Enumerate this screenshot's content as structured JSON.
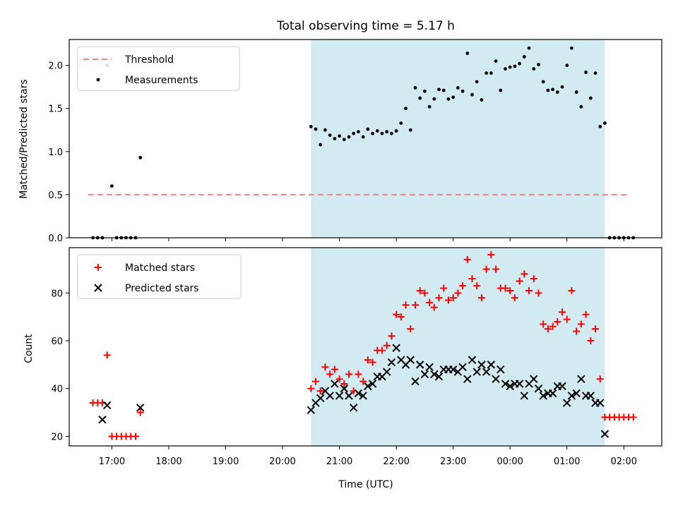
{
  "chart_data": {
    "title": "Total observing time = 5.17 h",
    "shaded_interval": {
      "start": "20:30",
      "end": "01:40",
      "color": "#add8e6"
    },
    "x_axis": {
      "label": "Time (UTC)",
      "range": [
        "16:15",
        "02:40"
      ],
      "ticks": [
        "17:00",
        "18:00",
        "19:00",
        "20:00",
        "21:00",
        "22:00",
        "23:00",
        "00:00",
        "01:00",
        "02:00"
      ]
    },
    "panels": [
      {
        "name": "ratio",
        "type": "scatter",
        "ylabel": "Matched/Predicted stars",
        "ylim": [
          0,
          2.3
        ],
        "yticks": [
          0.0,
          0.5,
          1.0,
          1.5,
          2.0
        ],
        "yticklabels": [
          "0.0",
          "0.5",
          "1.0",
          "1.5",
          "2.0"
        ],
        "legend": {
          "position": "upper-left",
          "entries": [
            "Threshold",
            "Measurements"
          ]
        },
        "threshold": {
          "name": "Threshold",
          "value": 0.5,
          "x_start": "16:35",
          "x_end": "02:05",
          "color": "#ff7f7f",
          "style": "dashed"
        },
        "series": [
          {
            "name": "Measurements",
            "marker": "dot",
            "color": "#000000",
            "points": [
              [
                "16:40",
                0.0
              ],
              [
                "16:45",
                0.0
              ],
              [
                "16:50",
                0.0
              ],
              [
                "16:55",
                2.0
              ],
              [
                "17:00",
                0.6
              ],
              [
                "17:05",
                0.0
              ],
              [
                "17:10",
                0.0
              ],
              [
                "17:15",
                0.0
              ],
              [
                "17:20",
                0.0
              ],
              [
                "17:25",
                0.0
              ],
              [
                "17:30",
                0.93
              ],
              [
                "20:30",
                1.29
              ],
              [
                "20:35",
                1.26
              ],
              [
                "20:40",
                1.08
              ],
              [
                "20:45",
                1.25
              ],
              [
                "20:50",
                1.19
              ],
              [
                "20:55",
                1.15
              ],
              [
                "21:00",
                1.18
              ],
              [
                "21:05",
                1.14
              ],
              [
                "21:10",
                1.17
              ],
              [
                "21:15",
                1.21
              ],
              [
                "21:20",
                1.23
              ],
              [
                "21:25",
                1.17
              ],
              [
                "21:30",
                1.26
              ],
              [
                "21:35",
                1.21
              ],
              [
                "21:40",
                1.24
              ],
              [
                "21:45",
                1.21
              ],
              [
                "21:50",
                1.23
              ],
              [
                "21:55",
                1.21
              ],
              [
                "22:00",
                1.24
              ],
              [
                "22:05",
                1.33
              ],
              [
                "22:10",
                1.5
              ],
              [
                "22:15",
                1.25
              ],
              [
                "22:20",
                1.74
              ],
              [
                "22:25",
                1.62
              ],
              [
                "22:30",
                1.7
              ],
              [
                "22:35",
                1.52
              ],
              [
                "22:40",
                1.61
              ],
              [
                "22:45",
                1.72
              ],
              [
                "22:50",
                1.71
              ],
              [
                "22:55",
                1.61
              ],
              [
                "23:00",
                1.63
              ],
              [
                "23:05",
                1.74
              ],
              [
                "23:10",
                1.7
              ],
              [
                "23:15",
                2.14
              ],
              [
                "23:20",
                1.66
              ],
              [
                "23:25",
                1.81
              ],
              [
                "23:30",
                1.6
              ],
              [
                "23:35",
                1.91
              ],
              [
                "23:40",
                1.91
              ],
              [
                "23:45",
                2.05
              ],
              [
                "23:50",
                1.71
              ],
              [
                "23:55",
                1.96
              ],
              [
                "00:00",
                1.98
              ],
              [
                "00:05",
                1.99
              ],
              [
                "00:10",
                2.02
              ],
              [
                "00:15",
                2.1
              ],
              [
                "00:20",
                2.2
              ],
              [
                "00:25",
                1.96
              ],
              [
                "00:30",
                2.01
              ],
              [
                "00:35",
                1.81
              ],
              [
                "00:40",
                1.71
              ],
              [
                "00:45",
                1.72
              ],
              [
                "00:50",
                1.69
              ],
              [
                "00:55",
                1.75
              ],
              [
                "01:00",
                2.0
              ],
              [
                "01:05",
                2.2
              ],
              [
                "01:10",
                1.69
              ],
              [
                "01:15",
                1.52
              ],
              [
                "01:20",
                1.92
              ],
              [
                "01:25",
                1.62
              ],
              [
                "01:30",
                1.91
              ],
              [
                "01:35",
                1.29
              ],
              [
                "01:40",
                1.33
              ],
              [
                "01:45",
                0.0
              ],
              [
                "01:50",
                0.0
              ],
              [
                "01:55",
                0.0
              ],
              [
                "02:00",
                0.0
              ],
              [
                "02:05",
                0.0
              ],
              [
                "02:10",
                0.0
              ]
            ]
          }
        ]
      },
      {
        "name": "counts",
        "type": "scatter",
        "ylabel": "Count",
        "ylim": [
          16,
          99
        ],
        "yticks": [
          20,
          40,
          60,
          80
        ],
        "yticklabels": [
          "20",
          "40",
          "60",
          "80"
        ],
        "legend": {
          "position": "upper-left",
          "entries": [
            "Matched stars",
            "Predicted stars"
          ]
        },
        "series": [
          {
            "name": "Matched stars",
            "marker": "plus",
            "color": "#ff0000",
            "points": [
              [
                "16:40",
                34
              ],
              [
                "16:45",
                34
              ],
              [
                "16:50",
                34
              ],
              [
                "16:55",
                54
              ],
              [
                "17:00",
                20
              ],
              [
                "17:05",
                20
              ],
              [
                "17:10",
                20
              ],
              [
                "17:15",
                20
              ],
              [
                "17:20",
                20
              ],
              [
                "17:25",
                20
              ],
              [
                "17:30",
                30
              ],
              [
                "20:30",
                40
              ],
              [
                "20:35",
                43
              ],
              [
                "20:40",
                39
              ],
              [
                "20:45",
                49
              ],
              [
                "20:50",
                46
              ],
              [
                "20:55",
                48
              ],
              [
                "21:00",
                44
              ],
              [
                "21:05",
                42
              ],
              [
                "21:10",
                46
              ],
              [
                "21:15",
                39
              ],
              [
                "21:20",
                46
              ],
              [
                "21:25",
                43
              ],
              [
                "21:30",
                52
              ],
              [
                "21:35",
                51
              ],
              [
                "21:40",
                56
              ],
              [
                "21:45",
                56
              ],
              [
                "21:50",
                58
              ],
              [
                "21:55",
                62
              ],
              [
                "22:00",
                71
              ],
              [
                "22:05",
                70
              ],
              [
                "22:10",
                75
              ],
              [
                "22:15",
                65
              ],
              [
                "22:20",
                75
              ],
              [
                "22:25",
                81
              ],
              [
                "22:30",
                80
              ],
              [
                "22:35",
                76
              ],
              [
                "22:40",
                74
              ],
              [
                "22:45",
                78
              ],
              [
                "22:50",
                82
              ],
              [
                "22:55",
                77
              ],
              [
                "23:00",
                78
              ],
              [
                "23:05",
                80
              ],
              [
                "23:10",
                83
              ],
              [
                "23:15",
                94
              ],
              [
                "23:20",
                86
              ],
              [
                "23:25",
                83
              ],
              [
                "23:30",
                78
              ],
              [
                "23:35",
                90
              ],
              [
                "23:40",
                96
              ],
              [
                "23:45",
                90
              ],
              [
                "23:50",
                82
              ],
              [
                "23:55",
                82
              ],
              [
                "00:00",
                81
              ],
              [
                "00:05",
                78
              ],
              [
                "00:10",
                85
              ],
              [
                "00:15",
                88
              ],
              [
                "00:20",
                81
              ],
              [
                "00:25",
                86
              ],
              [
                "00:30",
                80
              ],
              [
                "00:35",
                67
              ],
              [
                "00:40",
                65
              ],
              [
                "00:45",
                66
              ],
              [
                "00:50",
                68
              ],
              [
                "00:55",
                72
              ],
              [
                "01:00",
                69
              ],
              [
                "01:05",
                81
              ],
              [
                "01:10",
                64
              ],
              [
                "01:15",
                67
              ],
              [
                "01:20",
                71
              ],
              [
                "01:25",
                60
              ],
              [
                "01:30",
                65
              ],
              [
                "01:35",
                44
              ],
              [
                "01:40",
                28
              ],
              [
                "01:45",
                28
              ],
              [
                "01:50",
                28
              ],
              [
                "01:55",
                28
              ],
              [
                "02:00",
                28
              ],
              [
                "02:05",
                28
              ],
              [
                "02:10",
                28
              ]
            ]
          },
          {
            "name": "Predicted stars",
            "marker": "x",
            "color": "#000000",
            "points": [
              [
                "16:50",
                27
              ],
              [
                "16:55",
                33
              ],
              [
                "17:30",
                32
              ],
              [
                "20:30",
                31
              ],
              [
                "20:35",
                34
              ],
              [
                "20:40",
                36
              ],
              [
                "20:45",
                39
              ],
              [
                "20:50",
                37
              ],
              [
                "20:55",
                42
              ],
              [
                "21:00",
                37
              ],
              [
                "21:05",
                40
              ],
              [
                "21:10",
                37
              ],
              [
                "21:15",
                32
              ],
              [
                "21:20",
                38
              ],
              [
                "21:25",
                37
              ],
              [
                "21:30",
                41
              ],
              [
                "21:35",
                42
              ],
              [
                "21:40",
                45
              ],
              [
                "21:45",
                45
              ],
              [
                "21:50",
                47
              ],
              [
                "21:55",
                51
              ],
              [
                "22:00",
                57
              ],
              [
                "22:05",
                52
              ],
              [
                "22:10",
                50
              ],
              [
                "22:15",
                52
              ],
              [
                "22:20",
                43
              ],
              [
                "22:25",
                50
              ],
              [
                "22:30",
                46
              ],
              [
                "22:35",
                49
              ],
              [
                "22:40",
                46
              ],
              [
                "22:45",
                45
              ],
              [
                "22:50",
                48
              ],
              [
                "22:55",
                48
              ],
              [
                "23:00",
                48
              ],
              [
                "23:05",
                47
              ],
              [
                "23:10",
                49
              ],
              [
                "23:15",
                44
              ],
              [
                "23:20",
                52
              ],
              [
                "23:25",
                47
              ],
              [
                "23:30",
                50
              ],
              [
                "23:35",
                47
              ],
              [
                "23:40",
                50
              ],
              [
                "23:45",
                44
              ],
              [
                "23:50",
                48
              ],
              [
                "23:55",
                42
              ],
              [
                "00:00",
                41
              ],
              [
                "00:05",
                42
              ],
              [
                "00:10",
                42
              ],
              [
                "00:15",
                37
              ],
              [
                "00:20",
                42
              ],
              [
                "00:25",
                44
              ],
              [
                "00:30",
                40
              ],
              [
                "00:35",
                37
              ],
              [
                "00:40",
                38
              ],
              [
                "00:45",
                38
              ],
              [
                "00:50",
                41
              ],
              [
                "00:55",
                41
              ],
              [
                "01:00",
                34
              ],
              [
                "01:05",
                37
              ],
              [
                "01:10",
                38
              ],
              [
                "01:15",
                44
              ],
              [
                "01:20",
                37
              ],
              [
                "01:25",
                37
              ],
              [
                "01:30",
                34
              ],
              [
                "01:35",
                34
              ],
              [
                "01:40",
                21
              ]
            ]
          }
        ]
      }
    ]
  }
}
